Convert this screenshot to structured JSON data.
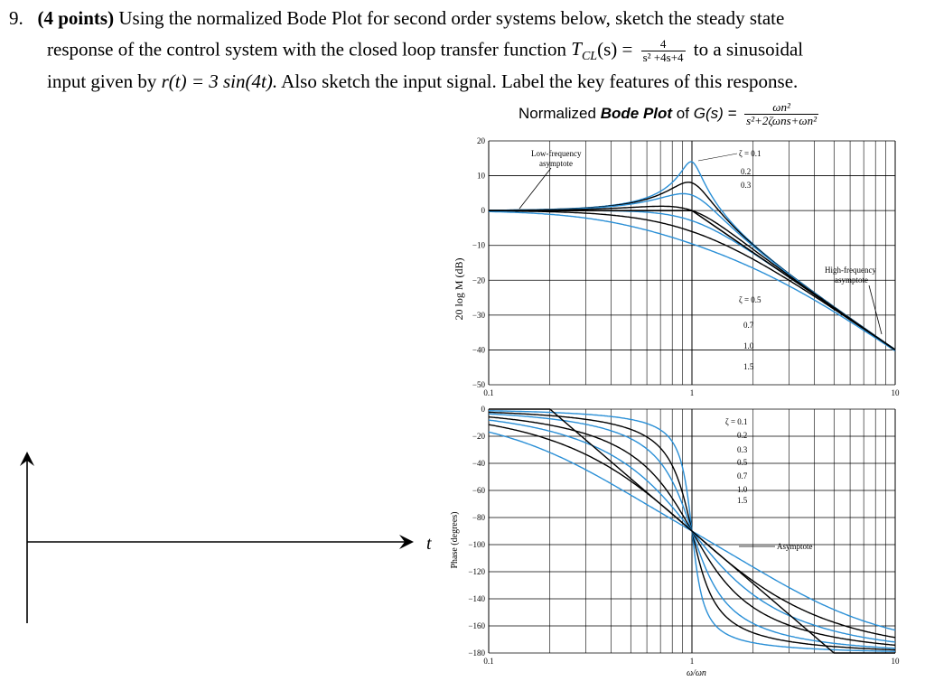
{
  "question": {
    "number": "9.",
    "points": "(4 points)",
    "line1_rest": "Using the normalized Bode Plot for second order systems below, sketch the steady state",
    "line2_pre": "response of the control system with the closed loop transfer function",
    "tf_label": "T",
    "tf_sub": "CL",
    "tf_arg": "(s) =",
    "tf_num": "4",
    "tf_den": "s² +4s+4",
    "line2_post": "to a sinusoidal",
    "line3_pre": "input given by",
    "input_expr": "r(t) = 3 sin(4t).",
    "line3_post": "Also sketch the input signal. Label the key features of this response."
  },
  "bode_title": {
    "pre": "Normalized",
    "bold": "Bode Plot",
    "mid": "of",
    "func": "G(s) =",
    "num": "ωn²",
    "den": "s²+2ζωns+ωn²"
  },
  "sketch": {
    "t_label": "t"
  },
  "magnitude_plot": {
    "ylabel": "20 log M (dB)",
    "yticks": [
      "20",
      "10",
      "0",
      "−10",
      "−20",
      "−30",
      "−40",
      "−50"
    ],
    "xticks": [
      "0.1",
      "1",
      "10"
    ],
    "annotations": {
      "low_freq_1": "Low-frequency",
      "low_freq_2": "asymptote",
      "high_freq_1": "High-frequency",
      "high_freq_2": "asymptote",
      "zeta_top": [
        "ζ = 0.1",
        "0.2",
        "0.3"
      ],
      "zeta_bottom": [
        "ζ = 0.5",
        "0.7",
        "1.0",
        "1.5"
      ]
    }
  },
  "phase_plot": {
    "ylabel": "Phase (degrees)",
    "yticks": [
      "0",
      "−20",
      "−40",
      "−60",
      "−80",
      "−100",
      "−120",
      "−140",
      "−160",
      "−180"
    ],
    "xticks": [
      "0.1",
      "1",
      "10"
    ],
    "xlabel": "ω/ωn",
    "zeta_labels": [
      "ζ = 0.1",
      "0.2",
      "0.3",
      "0.5",
      "0.7",
      "1.0",
      "1.5"
    ],
    "asymptote_label": "Asymptote"
  },
  "chart_data": [
    {
      "type": "line",
      "title": "",
      "xlabel": "",
      "ylabel": "20 log M (dB)",
      "xscale": "log",
      "xlim": [
        0.1,
        10
      ],
      "ylim": [
        -50,
        20
      ],
      "series": [
        {
          "name": "ζ = 0.1",
          "zeta": 0.1
        },
        {
          "name": "0.2",
          "zeta": 0.2
        },
        {
          "name": "0.3",
          "zeta": 0.3
        },
        {
          "name": "ζ = 0.5",
          "zeta": 0.5
        },
        {
          "name": "0.7",
          "zeta": 0.7
        },
        {
          "name": "1.0",
          "zeta": 1.0
        },
        {
          "name": "1.5",
          "zeta": 1.5
        }
      ],
      "grid": true
    },
    {
      "type": "line",
      "title": "",
      "xlabel": "ω/ωn",
      "ylabel": "Phase (degrees)",
      "xscale": "log",
      "xlim": [
        0.1,
        10
      ],
      "ylim": [
        -180,
        0
      ],
      "series": [
        {
          "name": "ζ = 0.1",
          "zeta": 0.1
        },
        {
          "name": "0.2",
          "zeta": 0.2
        },
        {
          "name": "0.3",
          "zeta": 0.3
        },
        {
          "name": "0.5",
          "zeta": 0.5
        },
        {
          "name": "0.7",
          "zeta": 0.7
        },
        {
          "name": "1.0",
          "zeta": 1.0
        },
        {
          "name": "1.5",
          "zeta": 1.5
        }
      ],
      "grid": true
    }
  ],
  "colors": {
    "blue_curve": "#2a8fd6",
    "black_curve": "#000000",
    "grid": "#000000"
  }
}
